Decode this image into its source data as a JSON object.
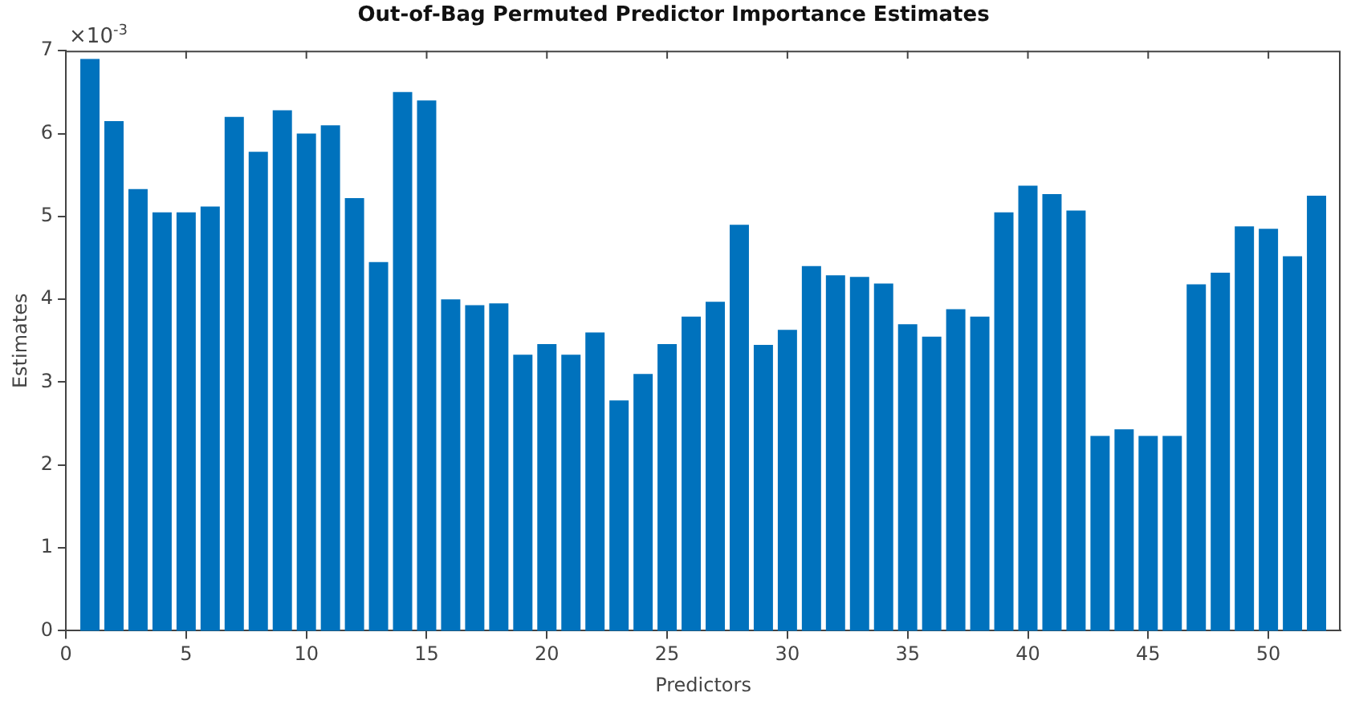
{
  "chart_data": {
    "type": "bar",
    "title": "Out-of-Bag Permuted Predictor Importance Estimates",
    "xlabel": "Predictors",
    "ylabel": "Estimates",
    "annotations": [
      "×10$^{-3}$"
    ],
    "x": [
      1,
      2,
      3,
      4,
      5,
      6,
      7,
      8,
      9,
      10,
      11,
      12,
      13,
      14,
      15,
      16,
      17,
      18,
      19,
      20,
      21,
      22,
      23,
      24,
      25,
      26,
      27,
      28,
      29,
      30,
      31,
      32,
      33,
      34,
      35,
      36,
      37,
      38,
      39,
      40,
      41,
      42,
      43,
      44,
      45,
      46,
      47,
      48,
      49,
      50,
      51,
      52
    ],
    "values": [
      6.9,
      6.15,
      5.33,
      5.05,
      5.05,
      5.12,
      6.2,
      5.78,
      6.28,
      6.0,
      6.1,
      5.22,
      4.45,
      6.5,
      6.4,
      4.0,
      3.93,
      3.95,
      3.33,
      3.46,
      3.33,
      3.6,
      2.78,
      3.1,
      3.46,
      3.79,
      3.97,
      4.9,
      3.45,
      3.63,
      4.4,
      4.29,
      4.27,
      4.19,
      3.7,
      3.55,
      3.88,
      3.79,
      5.05,
      5.37,
      5.27,
      5.07,
      2.35,
      2.43,
      2.35,
      2.35,
      4.18,
      4.32,
      4.88,
      4.85,
      4.52,
      5.25
    ],
    "color": "#0072bd",
    "xlim": [
      0,
      53
    ],
    "xticks": [
      0,
      5,
      10,
      15,
      20,
      25,
      30,
      35,
      40,
      45,
      50
    ],
    "ylim": [
      0,
      7
    ],
    "yticks": [
      0,
      1,
      2,
      3,
      4,
      5,
      6,
      7
    ],
    "grid": false,
    "legend": false
  }
}
